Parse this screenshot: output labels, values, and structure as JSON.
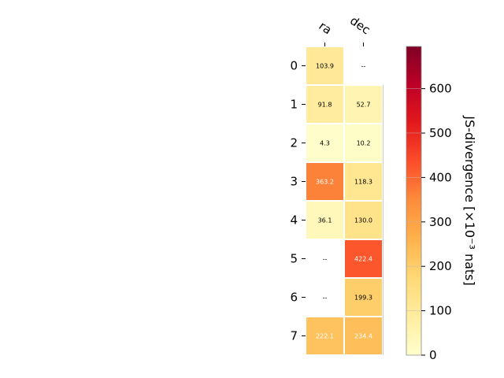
{
  "chart_data": {
    "type": "heatmap",
    "columns": [
      "ra",
      "dec"
    ],
    "rows": [
      "0",
      "1",
      "2",
      "3",
      "4",
      "5",
      "6",
      "7"
    ],
    "values": [
      [
        103.9,
        null
      ],
      [
        91.8,
        52.7
      ],
      [
        4.3,
        10.2
      ],
      [
        363.2,
        118.3
      ],
      [
        36.1,
        130.0
      ],
      [
        null,
        422.4
      ],
      [
        null,
        199.3
      ],
      [
        222.1,
        234.4
      ]
    ],
    "cell_labels": [
      [
        "103.9",
        "--"
      ],
      [
        "91.8",
        "52.7"
      ],
      [
        "4.3",
        "10.2"
      ],
      [
        "363.2",
        "118.3"
      ],
      [
        "36.1",
        "130.0"
      ],
      [
        "--",
        "422.4"
      ],
      [
        "--",
        "199.3"
      ],
      [
        "222.1",
        "234.4"
      ]
    ],
    "colormap": "YlOrRd",
    "colorbar": {
      "label": "JS-divergence [×10⁻³ nats]",
      "range": [
        0,
        695
      ],
      "ticks": [
        0,
        100,
        200,
        300,
        400,
        500,
        600
      ]
    },
    "grid": false,
    "title": "",
    "xlabel": "",
    "ylabel": ""
  }
}
